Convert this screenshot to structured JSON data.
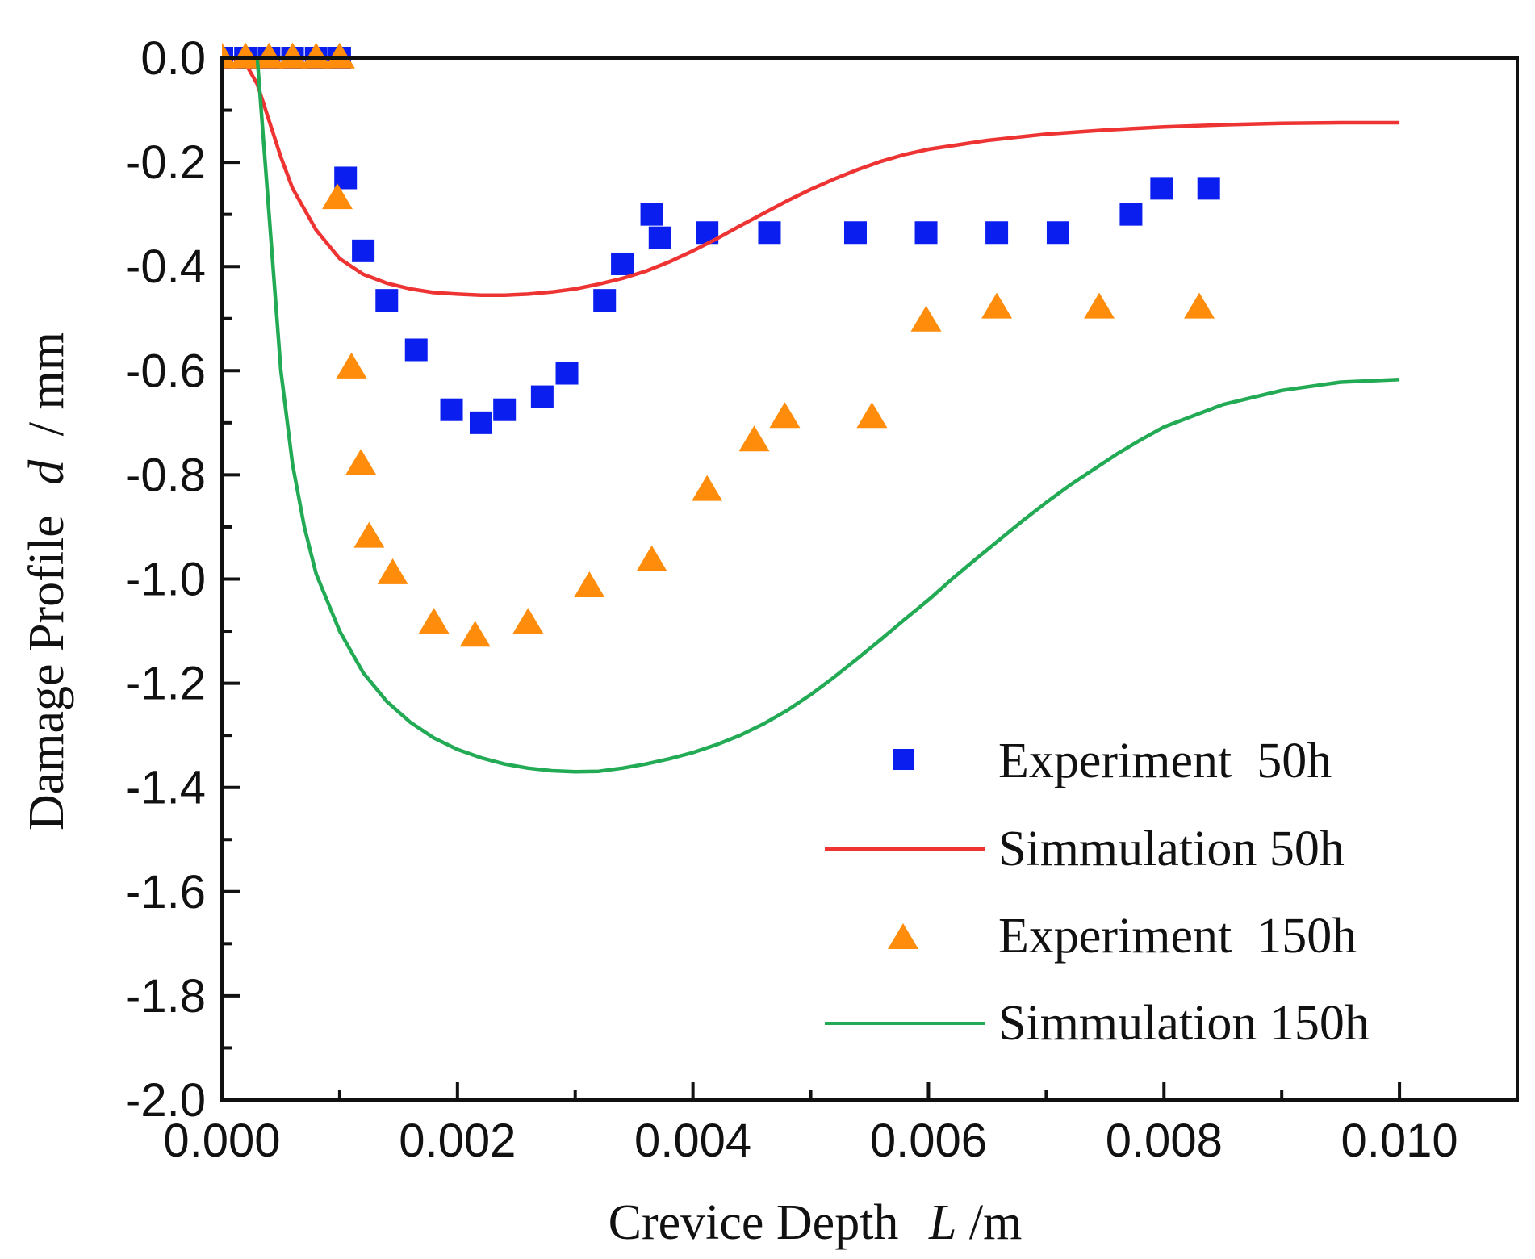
{
  "chart_data": {
    "type": "scatter",
    "title": "",
    "xlabel": {
      "prefix": "Crevice Depth",
      "variable": "L",
      "unit": "/m"
    },
    "ylabel": {
      "prefix": "Damage Profile",
      "variable": "d",
      "unit": "/ mm"
    },
    "xlim": [
      0,
      0.011
    ],
    "ylim": [
      -2.0,
      0.0
    ],
    "x_ticks": [
      0.0,
      0.002,
      0.004,
      0.006,
      0.008,
      0.01
    ],
    "x_tick_labels": [
      "0.000",
      "0.002",
      "0.004",
      "0.006",
      "0.008",
      "0.010"
    ],
    "y_ticks": [
      0.0,
      -0.2,
      -0.4,
      -0.6,
      -0.8,
      -1.0,
      -1.2,
      -1.4,
      -1.6,
      -1.8,
      -2.0
    ],
    "y_tick_labels": [
      "0.0",
      "-0.2",
      "-0.4",
      "-0.6",
      "-0.8",
      "-1.0",
      "-1.2",
      "-1.4",
      "-1.6",
      "-1.8",
      "-2.0"
    ],
    "grid": false,
    "legend_position": "bottom-right",
    "series": [
      {
        "name": "Experiment  50h",
        "kind": "scatter",
        "marker": "square",
        "color": "#0a1ef0",
        "x": [
          0.0,
          0.0002,
          0.0004,
          0.0006,
          0.0008,
          0.001,
          0.00105,
          0.0012,
          0.0014,
          0.00165,
          0.00195,
          0.0022,
          0.0024,
          0.00272,
          0.00293,
          0.00325,
          0.0034,
          0.00365,
          0.00372,
          0.00412,
          0.00465,
          0.00538,
          0.00598,
          0.00658,
          0.0071,
          0.00772,
          0.00798,
          0.00838
        ],
        "y": [
          0.0,
          0.0,
          0.0,
          0.0,
          0.0,
          0.0,
          -0.23,
          -0.37,
          -0.465,
          -0.56,
          -0.675,
          -0.7,
          -0.675,
          -0.65,
          -0.605,
          -0.465,
          -0.395,
          -0.3,
          -0.345,
          -0.335,
          -0.335,
          -0.335,
          -0.335,
          -0.335,
          -0.335,
          -0.3,
          -0.25,
          -0.25
        ]
      },
      {
        "name": "Simmulation 50h",
        "kind": "line",
        "color": "#ee3333",
        "x": [
          0.0,
          0.0001,
          0.0002,
          0.0003,
          0.0004,
          0.0005,
          0.0006,
          0.0008,
          0.001,
          0.0012,
          0.0014,
          0.0016,
          0.0018,
          0.002,
          0.0022,
          0.0024,
          0.0026,
          0.0028,
          0.003,
          0.0032,
          0.0034,
          0.0036,
          0.0038,
          0.004,
          0.0042,
          0.0044,
          0.0046,
          0.0048,
          0.005,
          0.0052,
          0.0054,
          0.0056,
          0.0058,
          0.006,
          0.0065,
          0.007,
          0.0075,
          0.008,
          0.0085,
          0.009,
          0.0095,
          0.01
        ],
        "y": [
          0.0,
          0.0,
          -0.01,
          -0.05,
          -0.12,
          -0.19,
          -0.25,
          -0.33,
          -0.385,
          -0.415,
          -0.432,
          -0.443,
          -0.45,
          -0.453,
          -0.455,
          -0.455,
          -0.453,
          -0.449,
          -0.443,
          -0.434,
          -0.423,
          -0.409,
          -0.391,
          -0.37,
          -0.347,
          -0.322,
          -0.298,
          -0.274,
          -0.252,
          -0.232,
          -0.214,
          -0.198,
          -0.185,
          -0.175,
          -0.158,
          -0.146,
          -0.138,
          -0.132,
          -0.128,
          -0.125,
          -0.124,
          -0.124
        ]
      },
      {
        "name": "Experiment  150h",
        "kind": "scatter",
        "marker": "triangle",
        "color": "#ff8c0a",
        "x": [
          0.0,
          0.0002,
          0.0004,
          0.0006,
          0.0008,
          0.001,
          0.00098,
          0.0011,
          0.00118,
          0.00125,
          0.00145,
          0.0018,
          0.00215,
          0.0026,
          0.00312,
          0.00365,
          0.00412,
          0.00452,
          0.00478,
          0.00552,
          0.00598,
          0.00658,
          0.00745,
          0.0083
        ],
        "y": [
          0.0,
          0.0,
          0.0,
          0.0,
          0.0,
          0.0,
          -0.27,
          -0.595,
          -0.78,
          -0.92,
          -0.99,
          -1.085,
          -1.11,
          -1.085,
          -1.015,
          -0.965,
          -0.83,
          -0.735,
          -0.69,
          -0.69,
          -0.505,
          -0.48,
          -0.48,
          -0.48
        ]
      },
      {
        "name": "Simmulation 150h",
        "kind": "line",
        "color": "#22aa55",
        "x": [
          0.0003,
          0.0004,
          0.0005,
          0.0006,
          0.0007,
          0.0008,
          0.001,
          0.0012,
          0.0014,
          0.0016,
          0.0018,
          0.002,
          0.0022,
          0.0024,
          0.0026,
          0.0028,
          0.003,
          0.0032,
          0.0034,
          0.0036,
          0.0038,
          0.004,
          0.0042,
          0.0044,
          0.0046,
          0.0048,
          0.005,
          0.0052,
          0.0054,
          0.0056,
          0.0058,
          0.006,
          0.0062,
          0.0064,
          0.0066,
          0.0068,
          0.007,
          0.0072,
          0.0074,
          0.0076,
          0.0078,
          0.008,
          0.0085,
          0.009,
          0.0095,
          0.01
        ],
        "y": [
          0.0,
          -0.3,
          -0.6,
          -0.78,
          -0.9,
          -0.99,
          -1.1,
          -1.18,
          -1.235,
          -1.275,
          -1.305,
          -1.327,
          -1.343,
          -1.355,
          -1.363,
          -1.368,
          -1.37,
          -1.369,
          -1.363,
          -1.355,
          -1.345,
          -1.333,
          -1.318,
          -1.3,
          -1.278,
          -1.252,
          -1.222,
          -1.188,
          -1.152,
          -1.115,
          -1.077,
          -1.04,
          -1.0,
          -0.962,
          -0.925,
          -0.888,
          -0.853,
          -0.82,
          -0.79,
          -0.76,
          -0.733,
          -0.708,
          -0.665,
          -0.638,
          -0.622,
          -0.617
        ]
      }
    ]
  }
}
